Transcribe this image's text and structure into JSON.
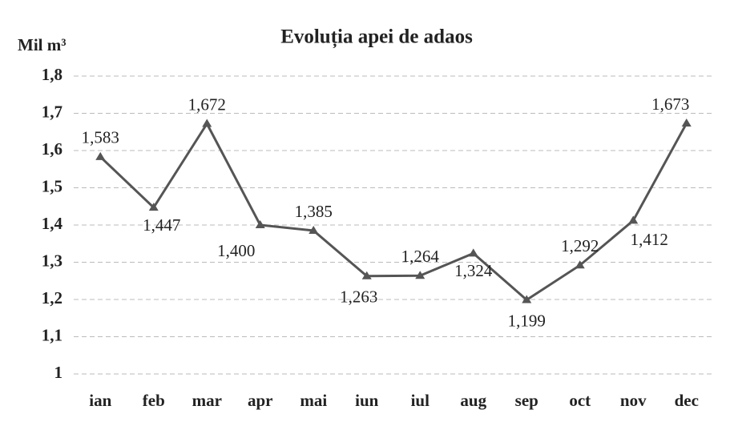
{
  "chart_data": {
    "type": "line",
    "title": "Evoluția apei de adaos",
    "y_label": "Mil m³",
    "categories": [
      "ian",
      "feb",
      "mar",
      "apr",
      "mai",
      "iun",
      "iul",
      "aug",
      "sep",
      "oct",
      "nov",
      "dec"
    ],
    "series": [
      {
        "name": "Evoluția apei de adaos",
        "color": "#555555",
        "values": [
          1.583,
          1.447,
          1.672,
          1.4,
          1.385,
          1.263,
          1.264,
          1.324,
          1.199,
          1.292,
          1.412,
          1.673
        ],
        "value_labels": [
          "1,583",
          "1,447",
          "1,672",
          "1,400",
          "1,385",
          "1,263",
          "1,264",
          "1,324",
          "1,199",
          "1,292",
          "1,412",
          "1,673"
        ]
      }
    ],
    "ylim": [
      1,
      1.8
    ],
    "yticks": [
      1,
      {
        "value": 1.1,
        "label": "1,1"
      },
      {
        "value": 1.2,
        "label": "1,2"
      },
      {
        "value": 1.3,
        "label": "1,3"
      },
      {
        "value": 1.4,
        "label": "1,4"
      },
      {
        "value": 1.5,
        "label": "1,5"
      },
      {
        "value": 1.6,
        "label": "1,6"
      },
      {
        "value": 1.7,
        "label": "1,7"
      },
      {
        "value": 1.8,
        "label": "1,8"
      }
    ],
    "grid": true
  }
}
